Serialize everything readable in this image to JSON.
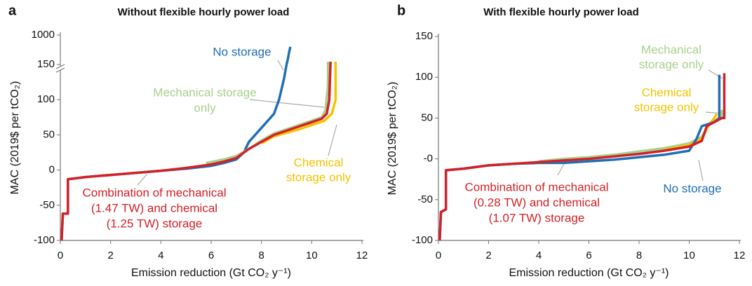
{
  "chart_data": [
    {
      "type": "line",
      "panel": "a",
      "title": "Without flexible hourly power load",
      "xlabel": "Emission reduction (Gt CO₂ y⁻¹)",
      "ylabel": "MAC (2019$ per tCO₂)",
      "xlim": [
        0,
        12
      ],
      "xticks": [
        0,
        2,
        4,
        6,
        8,
        10,
        12
      ],
      "ylim": [
        -100,
        1000
      ],
      "ybreak": 150,
      "yticks": [
        -100,
        -50,
        0,
        50,
        100,
        150,
        1000
      ],
      "series": [
        {
          "color": "#1f6fb5",
          "x": [
            0.05,
            0.1,
            0.3,
            0.3,
            1,
            2,
            3,
            4,
            5,
            6,
            6.5,
            7,
            7.3,
            7.5,
            8,
            8.5,
            8.7,
            8.9,
            9.0,
            9.05,
            9.1,
            9.15
          ],
          "y": [
            -100,
            -62,
            -62,
            -13,
            -10,
            -7,
            -4,
            -1,
            2,
            6,
            10,
            15,
            25,
            40,
            60,
            80,
            100,
            130,
            150,
            300,
            500,
            660
          ]
        },
        {
          "color": "#a8d08d",
          "x": [
            5.8,
            6.5,
            7,
            7.5,
            8,
            8.5,
            9,
            9.5,
            10,
            10.4,
            10.55,
            10.65,
            10.65
          ],
          "y": [
            10,
            15,
            20,
            30,
            42,
            52,
            58,
            64,
            70,
            75,
            85,
            120,
            230
          ]
        },
        {
          "color": "#f5c200",
          "x": [
            8,
            8.5,
            9,
            9.5,
            10,
            10.5,
            10.8,
            10.95,
            10.95
          ],
          "y": [
            38,
            48,
            53,
            58,
            64,
            70,
            80,
            100,
            230
          ]
        },
        {
          "color": "#d42027",
          "x": [
            0.05,
            0.1,
            0.3,
            0.3,
            1,
            2,
            3,
            4,
            5,
            6,
            6.5,
            7,
            7.5,
            8,
            8.5,
            9,
            9.5,
            10,
            10.4,
            10.6,
            10.7,
            10.75
          ],
          "y": [
            -100,
            -62,
            -62,
            -13,
            -10,
            -7,
            -4,
            -1,
            3,
            8,
            12,
            17,
            30,
            40,
            50,
            56,
            62,
            68,
            73,
            80,
            100,
            230
          ]
        }
      ],
      "annotations": [
        {
          "text": [
            "No storage"
          ],
          "color": "#1f6fb5"
        },
        {
          "text": [
            "Mechanical storage",
            "only"
          ],
          "color": "#a8d08d"
        },
        {
          "text": [
            "Chemical",
            "storage only"
          ],
          "color": "#f5c200"
        },
        {
          "text": [
            "Combination of mechanical",
            "(1.47 TW) and chemical",
            "(1.25 TW) storage"
          ],
          "color": "#d42027"
        }
      ]
    },
    {
      "type": "line",
      "panel": "b",
      "title": "With flexible hourly power load",
      "xlabel": "Emission reduction (Gt CO₂ y⁻¹)",
      "ylabel": "MAC (2019$ per tCO₂)",
      "xlim": [
        0,
        12
      ],
      "xticks": [
        0,
        2,
        4,
        6,
        8,
        10,
        12
      ],
      "ylim": [
        -100,
        150
      ],
      "yticks": [
        -100,
        -50,
        {
          "value": 0,
          "label": "-0"
        },
        50,
        100,
        150
      ],
      "series": [
        {
          "color": "#a8d08d",
          "x": [
            4,
            5,
            6,
            7,
            8,
            9,
            10,
            10.5,
            10.8,
            11.1,
            11.3,
            11.3
          ],
          "y": [
            -3,
            0,
            2,
            5,
            9,
            13,
            19,
            27,
            42,
            48,
            52,
            60
          ]
        },
        {
          "color": "#f5c200",
          "x": [
            9,
            10,
            10.5,
            10.8,
            11.0,
            11.1
          ],
          "y": [
            11,
            17,
            25,
            42,
            50,
            55
          ]
        },
        {
          "color": "#1f6fb5",
          "x": [
            0.05,
            0.1,
            0.3,
            0.3,
            1,
            2,
            3,
            4,
            5,
            6,
            7,
            8,
            9,
            10,
            10.3,
            10.5,
            11,
            11.2,
            11.2
          ],
          "y": [
            -100,
            -65,
            -62,
            -14,
            -12,
            -8,
            -6,
            -5,
            -5,
            -3,
            -1,
            2,
            5,
            10,
            25,
            40,
            45,
            50,
            103
          ]
        },
        {
          "color": "#d42027",
          "x": [
            0.05,
            0.1,
            0.3,
            0.3,
            1,
            2,
            3,
            4,
            5,
            6,
            7,
            8,
            9,
            10,
            10.5,
            10.7,
            11,
            11.3,
            11.4,
            11.4
          ],
          "y": [
            -100,
            -65,
            -62,
            -14,
            -12,
            -8,
            -6,
            -4,
            -2,
            0,
            3,
            6,
            10,
            15,
            22,
            40,
            45,
            50,
            50,
            105
          ]
        }
      ],
      "annotations": [
        {
          "text": [
            "Mechanical",
            "storage only"
          ],
          "color": "#a8d08d"
        },
        {
          "text": [
            "Chemical",
            "storage only"
          ],
          "color": "#f5c200"
        },
        {
          "text": [
            "No storage"
          ],
          "color": "#1f6fb5"
        },
        {
          "text": [
            "Combination of mechanical",
            "(0.28 TW) and chemical",
            "(1.07 TW) storage"
          ],
          "color": "#d42027"
        }
      ]
    }
  ]
}
